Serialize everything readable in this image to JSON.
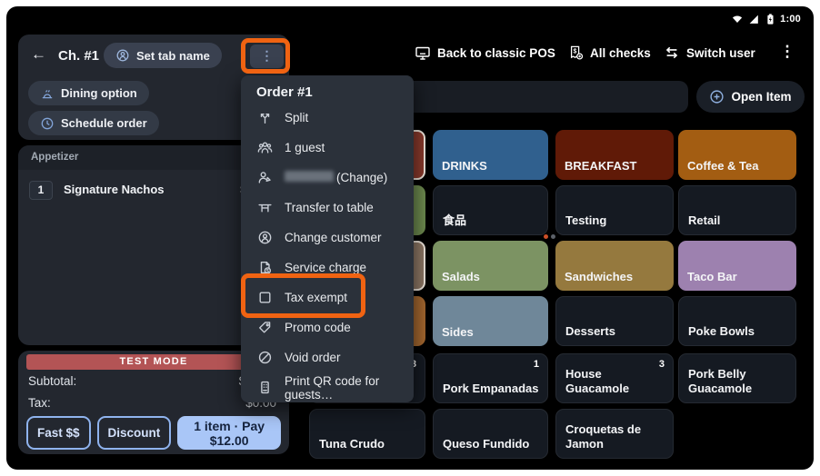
{
  "status_bar": {
    "time": "1:00"
  },
  "top_nav": {
    "back_to_classic_pos": "Back to classic POS",
    "all_checks": "All checks",
    "switch_user": "Switch user"
  },
  "order_panel": {
    "title": "Ch. #1",
    "set_tab_name": "Set tab name",
    "dining_option": "Dining option",
    "schedule_order": "Schedule order",
    "course_header": "Appetizer",
    "line_items": [
      {
        "qty": "1",
        "name": "Signature Nachos",
        "price": "$12.00"
      }
    ],
    "test_mode_banner": "TEST MODE",
    "subtotal_label": "Subtotal:",
    "subtotal_value": "$12.00",
    "tax_label": "Tax:",
    "tax_value": "$0.00",
    "fast_cash_button": "Fast $$",
    "discount_button": "Discount",
    "pay_button": "1 item · Pay $12.00"
  },
  "order_menu": {
    "header": "Order #1",
    "items": [
      {
        "label": "Split",
        "icon": "split"
      },
      {
        "label": "1 guest",
        "icon": "guests"
      },
      {
        "label": "(Change)",
        "icon": "person-change",
        "redacted_name": true
      },
      {
        "label": "Transfer to table",
        "icon": "table"
      },
      {
        "label": "Change customer",
        "icon": "person-circle"
      },
      {
        "label": "Service charge",
        "icon": "service-charge"
      },
      {
        "label": "Tax exempt",
        "icon": "checkbox",
        "highlighted": true
      },
      {
        "label": "Promo code",
        "icon": "promo-tag"
      },
      {
        "label": "Void order",
        "icon": "void"
      },
      {
        "label": "Print QR code for guests…",
        "icon": "qr-print"
      }
    ]
  },
  "item_search": {
    "open_item_button": "Open Item"
  },
  "menu_grid": {
    "pagination": {
      "active_page": 1,
      "total_pages": 2,
      "active_color": "#cc4f28",
      "inactive_color": "#5c6168"
    },
    "rows": [
      [
        {
          "label": "",
          "color": "#8a3a2c",
          "selected": true
        },
        {
          "label": "DRINKS",
          "color": "#30608e"
        },
        {
          "label": "BREAKFAST",
          "color": "#601a07"
        },
        {
          "label": "Coffee & Tea",
          "color": "#a35d12"
        }
      ],
      [
        {
          "label": "",
          "color": "#6d8a4f"
        },
        {
          "label": "食品",
          "color": "#151a22"
        },
        {
          "label": "Testing",
          "color": "#151a22"
        },
        {
          "label": "Retail",
          "color": "#151a22"
        }
      ],
      [
        {
          "label": "",
          "color": "#8d7765",
          "selected": true
        },
        {
          "label": "Salads",
          "color": "#7c9363"
        },
        {
          "label": "Sandwiches",
          "color": "#95793e"
        },
        {
          "label": "Taco Bar",
          "color": "#9d81af"
        }
      ],
      [
        {
          "label": "",
          "color": "#a4672f"
        },
        {
          "label": "Sides",
          "color": "#6f8799"
        },
        {
          "label": "Desserts",
          "color": "#151a22"
        },
        {
          "label": "Poke Bowls",
          "color": "#151a22"
        }
      ],
      [
        {
          "label": "",
          "color": "#151a22",
          "badge": "8"
        },
        {
          "label": "Pork Empanadas",
          "color": "#151a22",
          "badge": "1"
        },
        {
          "label": "House Guacamole",
          "color": "#151a22",
          "badge": "3"
        },
        {
          "label": "Pork Belly Guacamole",
          "color": "#151a22"
        }
      ],
      [
        {
          "label": "Tuna Crudo",
          "color": "#151a22"
        },
        {
          "label": "Queso Fundido",
          "color": "#151a22"
        },
        {
          "label": "Croquetas de Jamon",
          "color": "#151a22"
        },
        null
      ]
    ]
  },
  "annotations": {
    "color": "#f06312"
  }
}
